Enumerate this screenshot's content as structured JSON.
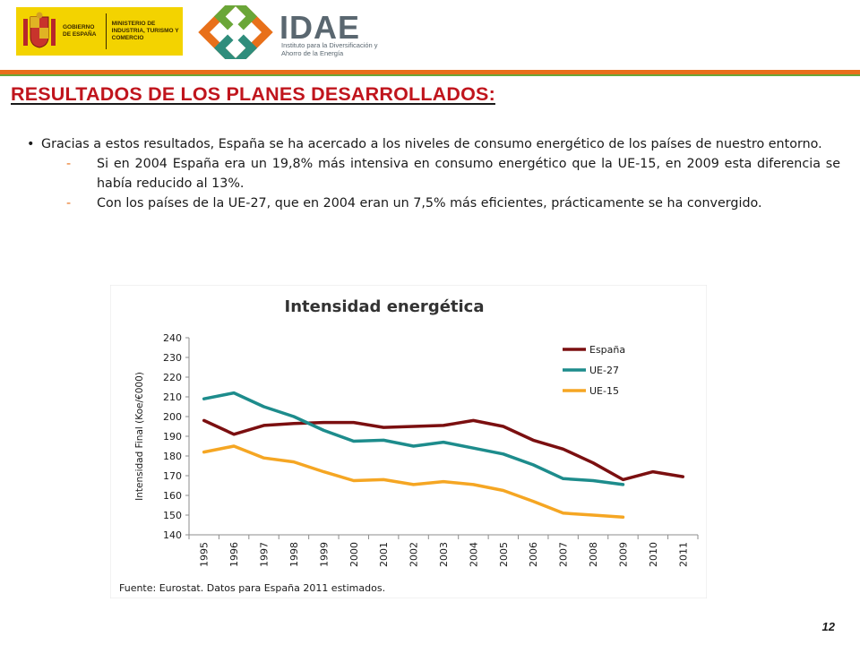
{
  "header": {
    "gov_line1": "GOBIERNO DE ESPAÑA",
    "gov_line2": "MINISTERIO DE INDUSTRIA, TURISMO Y COMERCIO",
    "idae_name": "IDAE",
    "idae_sub": "Instituto para la Diversificación y Ahorro de la Energía"
  },
  "colors": {
    "title": "#c0151d",
    "band_orange": "#e8701a",
    "band_green": "#6aa638",
    "espana": "#7b0f10",
    "ue27": "#1d8c8c",
    "ue15": "#f5a623"
  },
  "slide": {
    "title": "RESULTADOS DE LOS PLANES DESARROLLADOS:",
    "bullet": "Gracias a estos resultados, España se ha acercado a los niveles de consumo energético de los países de nuestro entorno.",
    "sub1": "Si en 2004 España era un 19,8% más intensiva en consumo energético que la UE-15, en 2009 esta diferencia se había reducido al 13%.",
    "sub2": "Con los países de la UE-27, que en 2004 eran un 7,5% más eficientes, prácticamente se ha convergido.",
    "bullet_mark": "•",
    "dash_mark": "-",
    "source_note": "Fuente: Eurostat. Datos para España 2011 estimados.",
    "page_number": "12"
  },
  "chart_data": {
    "type": "line",
    "title": "Intensidad energética",
    "xlabel": "",
    "ylabel": "Intensidad Final (Koe/€000)",
    "ylim": [
      140,
      240
    ],
    "yticks": [
      140,
      150,
      160,
      170,
      180,
      190,
      200,
      210,
      220,
      230,
      240
    ],
    "categories": [
      "1995",
      "1996",
      "1997",
      "1998",
      "1999",
      "2000",
      "2001",
      "2002",
      "2003",
      "2004",
      "2005",
      "2006",
      "2007",
      "2008",
      "2009",
      "2010",
      "2011"
    ],
    "legend_position": "top-right",
    "grid": false,
    "series": [
      {
        "name": "España",
        "color": "#7b0f10",
        "values": [
          198,
          191,
          195.5,
          196.5,
          197,
          197,
          194.5,
          195,
          195.5,
          198,
          195,
          188,
          183.5,
          176.5,
          168,
          172,
          169.5
        ]
      },
      {
        "name": "UE-27",
        "color": "#1d8c8c",
        "values": [
          209,
          212,
          205,
          200,
          193,
          187.5,
          188,
          185,
          187,
          184,
          181,
          175.5,
          168.5,
          167.5,
          165.5,
          null,
          null
        ]
      },
      {
        "name": "UE-15",
        "color": "#f5a623",
        "values": [
          182,
          185,
          179,
          177,
          172,
          167.5,
          168,
          165.5,
          167,
          165.5,
          162.5,
          157,
          151,
          150,
          149,
          null,
          null
        ]
      }
    ]
  }
}
